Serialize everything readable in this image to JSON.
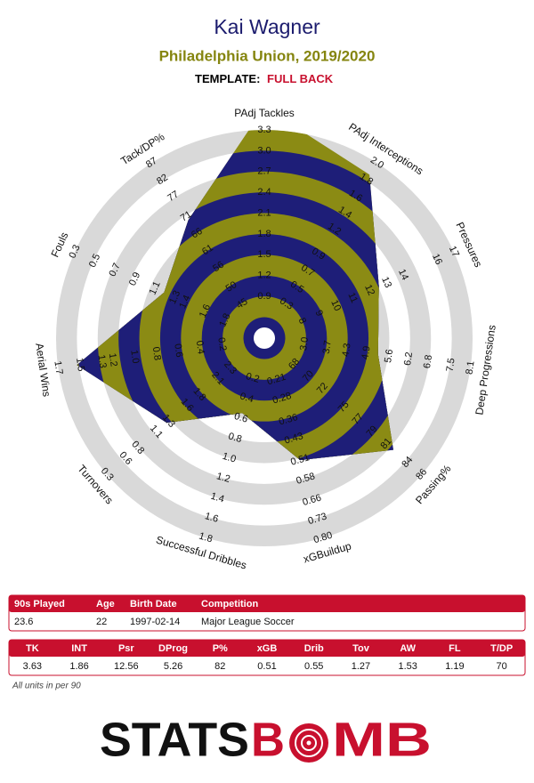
{
  "chart_data": {
    "type": "radar",
    "title": "Kai Wagner",
    "subtitle": "Philadelphia Union, 2019/2020",
    "template_label": "TEMPLATE:",
    "template": "FULL BACK",
    "categories": [
      "PAdj Tackles",
      "PAdj Interceptions",
      "Pressures",
      "Deep Progressions",
      "Passing%",
      "xGBuildup",
      "Successful Dribbles",
      "Turnovers",
      "Aerial Wins",
      "Fouls",
      "Tack/DP%"
    ],
    "values": [
      3.63,
      1.86,
      12.56,
      5.26,
      82,
      0.51,
      0.55,
      1.27,
      1.53,
      1.19,
      70
    ],
    "lims": [
      [
        0.6,
        3.3
      ],
      [
        0.1,
        2.0
      ],
      [
        6.9,
        17
      ],
      [
        2.4,
        8.1
      ],
      [
        66,
        86
      ],
      [
        0.13,
        0.8
      ],
      [
        0,
        1.8
      ],
      [
        2.6,
        0.3
      ],
      [
        0,
        1.7
      ],
      [
        2.0,
        0.3
      ],
      [
        40,
        87
      ]
    ],
    "ticks": [
      [
        0.9,
        1.2,
        1.5,
        1.8,
        2.1,
        2.4,
        2.7,
        {
          "value": 3,
          "label": "3.0"
        },
        3.3
      ],
      [
        0.3,
        0.5,
        0.7,
        0.9,
        1.2,
        1.4,
        1.6,
        1.8,
        {
          "value": 2,
          "label": "2.0"
        }
      ],
      [
        8,
        9,
        10,
        11,
        12,
        13,
        14,
        16,
        17
      ],
      [
        {
          "value": 3,
          "label": "3.0"
        },
        3.7,
        4.3,
        4.9,
        5.6,
        6.2,
        6.8,
        7.5,
        8.1
      ],
      [
        68,
        70,
        72,
        75,
        77,
        79,
        81,
        84,
        86
      ],
      [
        0.21,
        0.28,
        0.36,
        0.43,
        0.51,
        0.58,
        0.66,
        0.73,
        {
          "value": 0.8,
          "label": "0.80"
        }
      ],
      [
        0.2,
        0.4,
        0.6,
        0.8,
        {
          "value": 1,
          "label": "1.0"
        },
        1.2,
        1.4,
        1.6,
        1.8
      ],
      [
        2.3,
        2.1,
        1.8,
        1.6,
        1.3,
        1.1,
        0.8,
        0.6,
        0.3
      ],
      [
        0.2,
        0.4,
        0.6,
        0.8,
        {
          "value": 1,
          "label": "1.0"
        },
        1.2,
        1.3,
        1.5,
        1.7
      ],
      [
        1.8,
        1.6,
        1.4,
        1.3,
        1.1,
        0.9,
        0.7,
        0.5,
        0.3
      ],
      [
        45,
        50,
        56,
        61,
        66,
        71,
        77,
        82,
        87
      ]
    ],
    "colors": {
      "inside": [
        "#8b8b14",
        "#1e1e78"
      ],
      "outside": [
        "#d9d9d9",
        "#ffffff"
      ]
    }
  },
  "info_table": {
    "headers": [
      "90s Played",
      "Age",
      "Birth Date",
      "Competition"
    ],
    "row": [
      "23.6",
      "22",
      "1997-02-14",
      "Major League Soccer"
    ]
  },
  "stats_table": {
    "headers": [
      "TK",
      "INT",
      "Psr",
      "DProg",
      "P%",
      "xGB",
      "Drib",
      "Tov",
      "AW",
      "FL",
      "T/DP"
    ]
  },
  "note": "All units in per 90",
  "logo": [
    "STATS",
    "B",
    "MB"
  ]
}
